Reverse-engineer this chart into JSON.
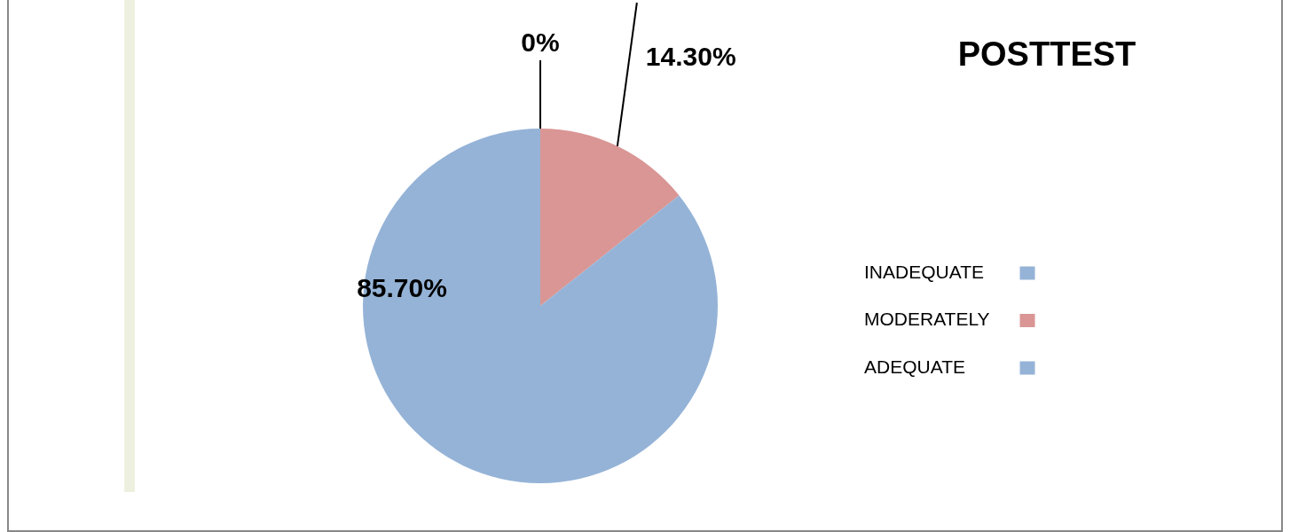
{
  "chart_data": {
    "type": "pie",
    "title": "POSTTEST",
    "categories": [
      "INADEQUATE",
      "MODERATELY",
      "ADEQUATE"
    ],
    "values": [
      0,
      14.3,
      85.7
    ],
    "colors": [
      "#95b3d7",
      "#d99694",
      "#95b3d7"
    ],
    "value_labels": [
      "0%",
      "14.30%",
      "85.70%"
    ],
    "legend": "right"
  }
}
